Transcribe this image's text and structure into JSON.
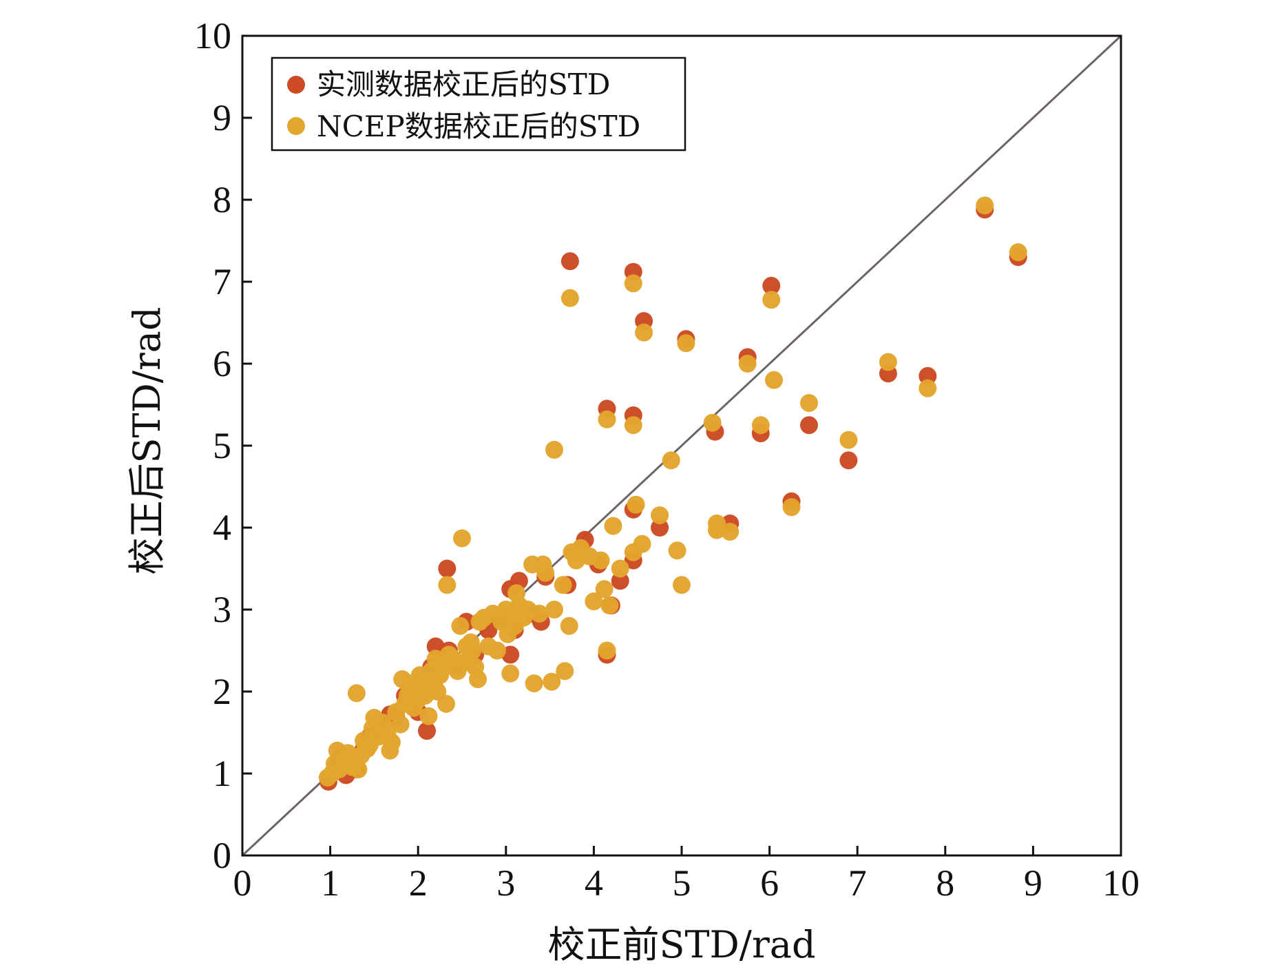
{
  "chart_data": {
    "type": "scatter",
    "title": "",
    "xlabel": "校正前STD/rad",
    "ylabel": "校正后STD/rad",
    "xlim": [
      0,
      10
    ],
    "ylim": [
      0,
      10
    ],
    "xticks": [
      "0",
      "1",
      "2",
      "3",
      "4",
      "5",
      "6",
      "7",
      "8",
      "9",
      "10"
    ],
    "yticks": [
      "0",
      "1",
      "2",
      "3",
      "4",
      "5",
      "6",
      "7",
      "8",
      "9",
      "10"
    ],
    "reference_line": "y = x",
    "legend_position": "top-left",
    "series": [
      {
        "name": "实测数据校正后的STD",
        "color": "#cc4a24",
        "points": [
          [
            0.98,
            0.9
          ],
          [
            1.05,
            1.02
          ],
          [
            1.1,
            1.18
          ],
          [
            1.18,
            0.98
          ],
          [
            1.25,
            1.1
          ],
          [
            1.3,
            1.05
          ],
          [
            1.38,
            1.3
          ],
          [
            1.45,
            1.45
          ],
          [
            1.55,
            1.55
          ],
          [
            1.68,
            1.72
          ],
          [
            1.75,
            1.68
          ],
          [
            1.85,
            1.95
          ],
          [
            1.92,
            2.05
          ],
          [
            2.0,
            1.75
          ],
          [
            2.05,
            2.1
          ],
          [
            2.1,
            1.52
          ],
          [
            2.15,
            2.3
          ],
          [
            2.2,
            2.55
          ],
          [
            2.3,
            2.4
          ],
          [
            2.35,
            2.5
          ],
          [
            2.45,
            2.3
          ],
          [
            2.55,
            2.85
          ],
          [
            2.65,
            2.45
          ],
          [
            2.8,
            2.75
          ],
          [
            2.95,
            2.9
          ],
          [
            3.05,
            3.25
          ],
          [
            3.1,
            2.75
          ],
          [
            3.15,
            3.35
          ],
          [
            3.3,
            2.95
          ],
          [
            3.4,
            2.85
          ],
          [
            3.45,
            3.4
          ],
          [
            3.7,
            3.3
          ],
          [
            3.9,
            3.85
          ],
          [
            4.05,
            3.55
          ],
          [
            4.15,
            2.45
          ],
          [
            4.2,
            3.05
          ],
          [
            4.3,
            3.35
          ],
          [
            4.45,
            3.6
          ],
          [
            4.75,
            4.0
          ],
          [
            2.33,
            3.5
          ],
          [
            3.73,
            7.25
          ],
          [
            4.45,
            7.12
          ],
          [
            4.57,
            6.52
          ],
          [
            5.05,
            6.3
          ],
          [
            6.02,
            6.95
          ],
          [
            5.75,
            6.08
          ],
          [
            4.15,
            5.45
          ],
          [
            4.45,
            5.37
          ],
          [
            5.38,
            5.17
          ],
          [
            5.9,
            5.15
          ],
          [
            6.45,
            5.25
          ],
          [
            6.9,
            4.82
          ],
          [
            7.35,
            5.88
          ],
          [
            7.8,
            5.85
          ],
          [
            8.45,
            7.88
          ],
          [
            8.83,
            7.3
          ],
          [
            6.25,
            4.32
          ],
          [
            5.55,
            4.05
          ],
          [
            4.45,
            4.22
          ],
          [
            3.05,
            2.45
          ]
        ]
      },
      {
        "name": "NCEP数据校正后的STD",
        "color": "#e2a52d",
        "points": [
          [
            0.97,
            0.95
          ],
          [
            1.02,
            1.0
          ],
          [
            1.05,
            1.12
          ],
          [
            1.08,
            1.28
          ],
          [
            1.1,
            1.05
          ],
          [
            1.15,
            1.15
          ],
          [
            1.2,
            1.25
          ],
          [
            1.25,
            1.08
          ],
          [
            1.28,
            1.15
          ],
          [
            1.32,
            1.05
          ],
          [
            1.35,
            1.22
          ],
          [
            1.38,
            1.4
          ],
          [
            1.42,
            1.3
          ],
          [
            1.45,
            1.35
          ],
          [
            1.48,
            1.55
          ],
          [
            1.5,
            1.68
          ],
          [
            1.55,
            1.45
          ],
          [
            1.6,
            1.62
          ],
          [
            1.65,
            1.5
          ],
          [
            1.68,
            1.28
          ],
          [
            1.7,
            1.38
          ],
          [
            1.75,
            1.75
          ],
          [
            1.8,
            1.6
          ],
          [
            1.82,
            2.15
          ],
          [
            1.85,
            1.85
          ],
          [
            1.88,
            1.95
          ],
          [
            1.9,
            2.05
          ],
          [
            1.92,
            2.1
          ],
          [
            1.95,
            1.8
          ],
          [
            1.98,
            2.0
          ],
          [
            2.0,
            1.9
          ],
          [
            2.02,
            2.2
          ],
          [
            2.05,
            2.05
          ],
          [
            2.08,
            1.95
          ],
          [
            2.1,
            2.15
          ],
          [
            2.12,
            1.7
          ],
          [
            2.15,
            2.25
          ],
          [
            2.18,
            2.1
          ],
          [
            2.2,
            2.4
          ],
          [
            2.22,
            2.0
          ],
          [
            2.25,
            2.2
          ],
          [
            2.28,
            2.35
          ],
          [
            2.3,
            2.3
          ],
          [
            2.32,
            1.85
          ],
          [
            2.35,
            2.45
          ],
          [
            2.4,
            2.4
          ],
          [
            2.45,
            2.25
          ],
          [
            2.48,
            2.8
          ],
          [
            2.5,
            3.87
          ],
          [
            2.52,
            2.35
          ],
          [
            2.55,
            2.55
          ],
          [
            2.58,
            2.4
          ],
          [
            2.6,
            2.6
          ],
          [
            2.62,
            2.5
          ],
          [
            2.65,
            2.3
          ],
          [
            2.68,
            2.15
          ],
          [
            2.7,
            2.85
          ],
          [
            2.75,
            2.9
          ],
          [
            2.8,
            2.55
          ],
          [
            2.85,
            2.95
          ],
          [
            2.9,
            2.5
          ],
          [
            2.95,
            2.85
          ],
          [
            3.0,
            3.0
          ],
          [
            3.02,
            2.7
          ],
          [
            3.05,
            2.22
          ],
          [
            3.08,
            2.95
          ],
          [
            3.1,
            2.8
          ],
          [
            3.12,
            3.2
          ],
          [
            3.15,
            3.05
          ],
          [
            3.2,
            2.9
          ],
          [
            3.25,
            3.0
          ],
          [
            3.3,
            3.55
          ],
          [
            3.32,
            2.1
          ],
          [
            3.38,
            2.95
          ],
          [
            3.42,
            3.55
          ],
          [
            3.45,
            3.45
          ],
          [
            3.52,
            2.12
          ],
          [
            3.55,
            3.0
          ],
          [
            3.65,
            3.3
          ],
          [
            3.67,
            2.25
          ],
          [
            3.72,
            2.8
          ],
          [
            3.75,
            3.7
          ],
          [
            3.8,
            3.6
          ],
          [
            3.85,
            3.75
          ],
          [
            3.95,
            3.65
          ],
          [
            4.0,
            3.1
          ],
          [
            4.08,
            3.6
          ],
          [
            4.12,
            3.25
          ],
          [
            4.18,
            3.05
          ],
          [
            4.15,
            2.5
          ],
          [
            4.22,
            4.02
          ],
          [
            4.3,
            3.5
          ],
          [
            4.45,
            3.7
          ],
          [
            4.48,
            4.28
          ],
          [
            4.55,
            3.8
          ],
          [
            4.75,
            4.15
          ],
          [
            4.88,
            4.82
          ],
          [
            4.95,
            3.72
          ],
          [
            5.0,
            3.3
          ],
          [
            5.35,
            5.28
          ],
          [
            5.4,
            4.05
          ],
          [
            5.55,
            3.95
          ],
          [
            3.55,
            4.95
          ],
          [
            2.33,
            3.3
          ],
          [
            1.3,
            1.98
          ],
          [
            3.73,
            6.8
          ],
          [
            4.45,
            6.98
          ],
          [
            4.57,
            6.38
          ],
          [
            5.05,
            6.25
          ],
          [
            6.02,
            6.78
          ],
          [
            5.75,
            6.0
          ],
          [
            6.05,
            5.8
          ],
          [
            4.15,
            5.32
          ],
          [
            4.45,
            5.25
          ],
          [
            5.9,
            5.25
          ],
          [
            6.45,
            5.52
          ],
          [
            6.9,
            5.07
          ],
          [
            7.35,
            6.02
          ],
          [
            7.8,
            5.7
          ],
          [
            8.45,
            7.93
          ],
          [
            8.83,
            7.36
          ],
          [
            6.25,
            4.25
          ],
          [
            5.4,
            3.97
          ]
        ]
      }
    ]
  }
}
